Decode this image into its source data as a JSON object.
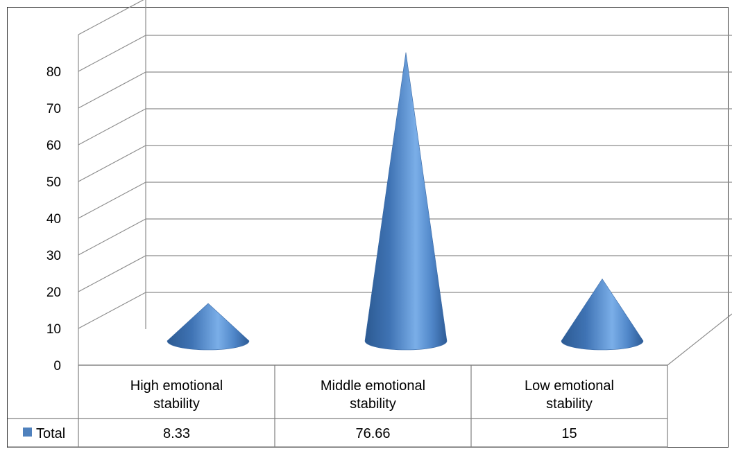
{
  "chart_data": {
    "type": "bar",
    "shape": "cone",
    "categories": [
      [
        "High emotional",
        "stability"
      ],
      [
        "Middle emotional",
        "stability"
      ],
      [
        "Low emotional",
        "stability"
      ]
    ],
    "series": [
      {
        "name": "Total",
        "values": [
          8.33,
          76.66,
          15
        ],
        "color": "#4f81bd"
      }
    ],
    "data_labels": [
      "8.33",
      "76.66",
      "15"
    ],
    "y_ticks": [
      "0",
      "10",
      "20",
      "30",
      "40",
      "50",
      "60",
      "70",
      "80"
    ],
    "ylim": [
      0,
      80
    ],
    "grid": true,
    "legend": "data-table-left"
  }
}
